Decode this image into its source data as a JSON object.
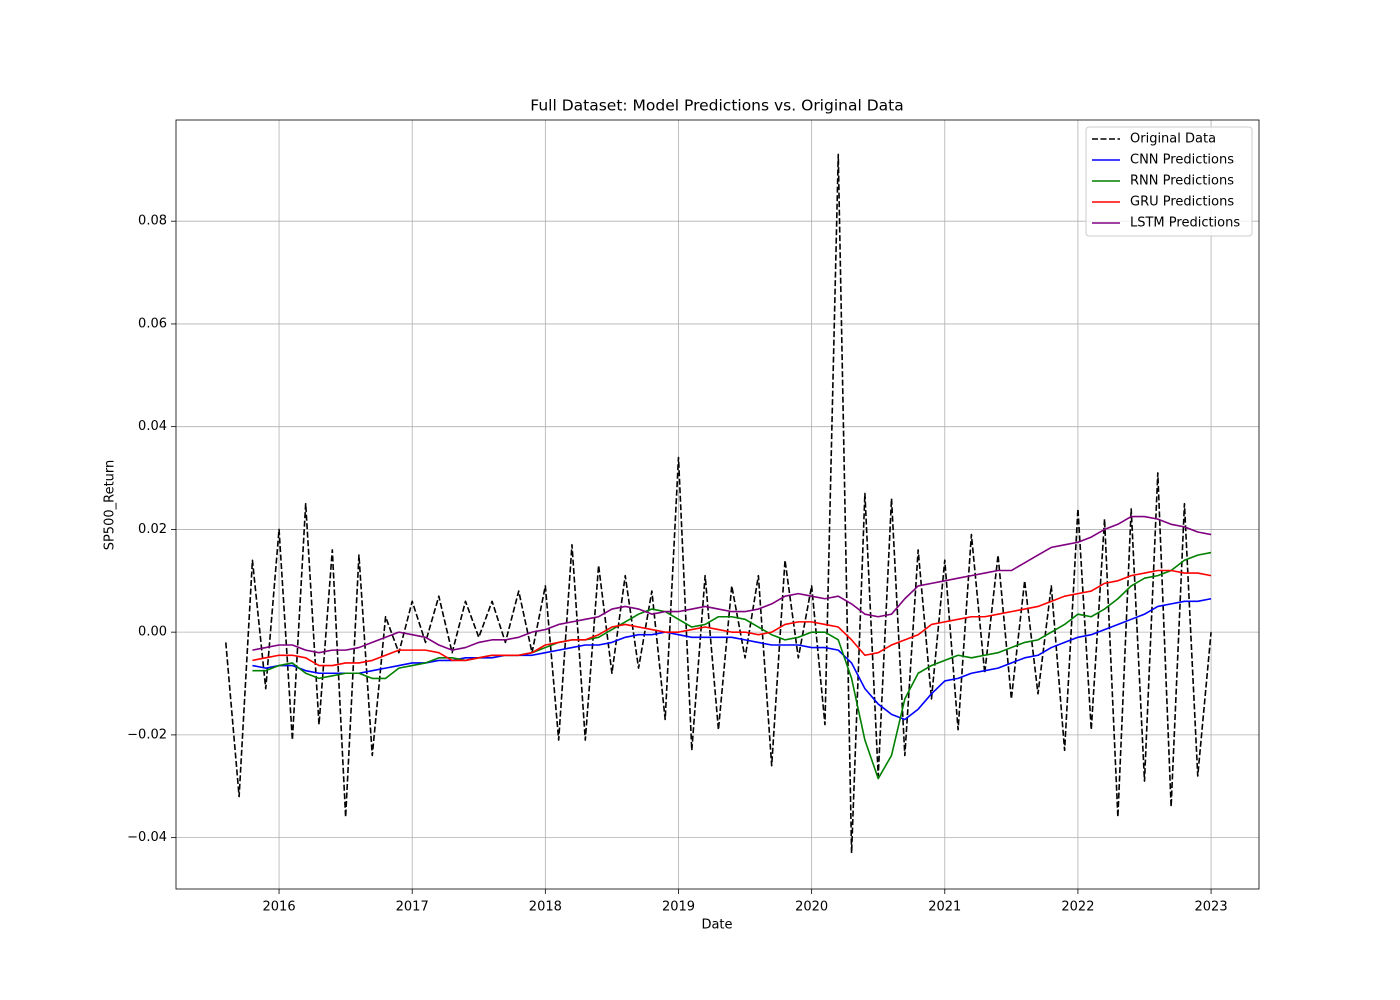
{
  "chart_data": {
    "type": "line",
    "title": "Full Dataset: Model Predictions vs. Original Data",
    "xlabel": "Date",
    "ylabel": "SP500_Return",
    "xlim": [
      2015.226,
      2023.36
    ],
    "xticks": [
      2016,
      2017,
      2018,
      2019,
      2020,
      2021,
      2022,
      2023
    ],
    "ylim": [
      -0.05,
      0.0997
    ],
    "yticks": [
      {
        "value": -0.04,
        "label": "−0.04"
      },
      {
        "value": -0.02,
        "label": "−0.02"
      },
      {
        "value": 0,
        "label": "0.00"
      },
      {
        "value": 0.02,
        "label": "0.02"
      },
      {
        "value": 0.04,
        "label": "0.04"
      },
      {
        "value": 0.06,
        "label": "0.06"
      },
      {
        "value": 0.08,
        "label": "0.08"
      }
    ],
    "grid": true,
    "legend": "upper right",
    "x": [
      2015.6,
      2015.7,
      2015.8,
      2015.9,
      2016.0,
      2016.1,
      2016.2,
      2016.3,
      2016.4,
      2016.5,
      2016.6,
      2016.7,
      2016.8,
      2016.9,
      2017.0,
      2017.1,
      2017.2,
      2017.3,
      2017.4,
      2017.5,
      2017.6,
      2017.7,
      2017.8,
      2017.9,
      2018.0,
      2018.1,
      2018.2,
      2018.3,
      2018.4,
      2018.5,
      2018.6,
      2018.7,
      2018.8,
      2018.9,
      2019.0,
      2019.1,
      2019.2,
      2019.3,
      2019.4,
      2019.5,
      2019.6,
      2019.7,
      2019.8,
      2019.9,
      2020.0,
      2020.1,
      2020.2,
      2020.3,
      2020.4,
      2020.5,
      2020.6,
      2020.7,
      2020.8,
      2020.9,
      2021.0,
      2021.1,
      2021.2,
      2021.3,
      2021.4,
      2021.5,
      2021.6,
      2021.7,
      2021.8,
      2021.9,
      2022.0,
      2022.1,
      2022.2,
      2022.3,
      2022.4,
      2022.5,
      2022.6,
      2022.7,
      2022.8,
      2022.9,
      2023.0
    ],
    "series": [
      {
        "name": "Original Data",
        "color": "#000000",
        "linestyle": "dashed",
        "values": [
          -0.002,
          -0.032,
          0.014,
          -0.011,
          0.02,
          -0.021,
          0.025,
          -0.018,
          0.016,
          -0.036,
          0.015,
          -0.024,
          0.003,
          -0.004,
          0.006,
          -0.002,
          0.007,
          -0.004,
          0.006,
          -0.001,
          0.006,
          -0.002,
          0.008,
          -0.004,
          0.009,
          -0.021,
          0.017,
          -0.021,
          0.013,
          -0.008,
          0.011,
          -0.007,
          0.008,
          -0.017,
          0.034,
          -0.023,
          0.011,
          -0.019,
          0.009,
          -0.005,
          0.011,
          -0.026,
          0.014,
          -0.005,
          0.009,
          -0.018,
          0.093,
          -0.043,
          0.027,
          -0.028,
          0.026,
          -0.024,
          0.016,
          -0.013,
          0.014,
          -0.019,
          0.019,
          -0.008,
          0.015,
          -0.013,
          0.01,
          -0.012,
          0.009,
          -0.023,
          0.024,
          -0.019,
          0.022,
          -0.036,
          0.024,
          -0.029,
          0.031,
          -0.034,
          0.025,
          -0.028,
          0.0
        ]
      },
      {
        "name": "CNN Predictions",
        "color": "#0000ff",
        "linestyle": "solid",
        "values": [
          null,
          null,
          -0.0065,
          -0.007,
          -0.0065,
          -0.0065,
          -0.0075,
          -0.008,
          -0.008,
          -0.008,
          -0.008,
          -0.0075,
          -0.007,
          -0.0065,
          -0.006,
          -0.006,
          -0.0055,
          -0.0055,
          -0.005,
          -0.005,
          -0.005,
          -0.0045,
          -0.0045,
          -0.0045,
          -0.004,
          -0.0035,
          -0.003,
          -0.0025,
          -0.0025,
          -0.002,
          -0.001,
          -0.0005,
          -0.0005,
          0.0,
          -0.0005,
          -0.001,
          -0.001,
          -0.001,
          -0.001,
          -0.0015,
          -0.002,
          -0.0025,
          -0.0025,
          -0.0025,
          -0.003,
          -0.003,
          -0.0035,
          -0.006,
          -0.011,
          -0.014,
          -0.016,
          -0.017,
          -0.015,
          -0.012,
          -0.0095,
          -0.009,
          -0.008,
          -0.0075,
          -0.007,
          -0.006,
          -0.005,
          -0.0045,
          -0.003,
          -0.002,
          -0.001,
          -0.0005,
          0.0005,
          0.0015,
          0.0025,
          0.0035,
          0.005,
          0.0055,
          0.006,
          0.006,
          0.0065
        ]
      },
      {
        "name": "RNN Predictions",
        "color": "#008000",
        "linestyle": "solid",
        "values": [
          null,
          null,
          -0.0075,
          -0.0075,
          -0.0065,
          -0.006,
          -0.008,
          -0.009,
          -0.0085,
          -0.008,
          -0.008,
          -0.009,
          -0.009,
          -0.007,
          -0.0065,
          -0.006,
          -0.005,
          -0.005,
          -0.0055,
          -0.005,
          -0.0045,
          -0.0045,
          -0.0045,
          -0.004,
          -0.003,
          -0.002,
          -0.0015,
          -0.0015,
          -0.001,
          0.0005,
          0.002,
          0.0035,
          0.0045,
          0.004,
          0.0025,
          0.001,
          0.0015,
          0.003,
          0.003,
          0.0025,
          0.001,
          -0.0005,
          -0.0015,
          -0.001,
          0.0,
          0.0,
          -0.0015,
          -0.009,
          -0.021,
          -0.0285,
          -0.024,
          -0.013,
          -0.008,
          -0.0065,
          -0.0055,
          -0.0045,
          -0.005,
          -0.0045,
          -0.004,
          -0.003,
          -0.002,
          -0.0015,
          0.0,
          0.0015,
          0.0035,
          0.003,
          0.0045,
          0.0065,
          0.009,
          0.0105,
          0.011,
          0.012,
          0.014,
          0.015,
          0.0155
        ]
      },
      {
        "name": "GRU Predictions",
        "color": "#ff0000",
        "linestyle": "solid",
        "values": [
          null,
          null,
          -0.0055,
          -0.005,
          -0.0045,
          -0.0045,
          -0.005,
          -0.0065,
          -0.0065,
          -0.006,
          -0.006,
          -0.0055,
          -0.0045,
          -0.0035,
          -0.0035,
          -0.0035,
          -0.004,
          -0.0055,
          -0.0055,
          -0.005,
          -0.0045,
          -0.0045,
          -0.0045,
          -0.004,
          -0.0025,
          -0.002,
          -0.0015,
          -0.0015,
          -0.0005,
          0.001,
          0.0015,
          0.001,
          0.0005,
          0.0,
          0.0,
          0.0005,
          0.001,
          0.0005,
          0.0,
          0.0,
          -0.0005,
          0.0,
          0.0015,
          0.002,
          0.002,
          0.0015,
          0.001,
          -0.0015,
          -0.0045,
          -0.004,
          -0.0025,
          -0.0015,
          -0.0005,
          0.0015,
          0.002,
          0.0025,
          0.003,
          0.003,
          0.0035,
          0.004,
          0.0045,
          0.005,
          0.006,
          0.007,
          0.0075,
          0.008,
          0.0095,
          0.01,
          0.011,
          0.0115,
          0.012,
          0.012,
          0.0115,
          0.0115,
          0.011
        ]
      },
      {
        "name": "LSTM Predictions",
        "color": "#800080",
        "linestyle": "solid",
        "values": [
          null,
          null,
          -0.0035,
          -0.003,
          -0.0025,
          -0.0025,
          -0.0035,
          -0.004,
          -0.0035,
          -0.0035,
          -0.003,
          -0.002,
          -0.001,
          0.0,
          -0.0005,
          -0.001,
          -0.0025,
          -0.0035,
          -0.003,
          -0.002,
          -0.0015,
          -0.0015,
          -0.001,
          0.0,
          0.0005,
          0.0015,
          0.002,
          0.0025,
          0.003,
          0.0045,
          0.005,
          0.0045,
          0.0035,
          0.004,
          0.004,
          0.0045,
          0.005,
          0.0045,
          0.004,
          0.004,
          0.0045,
          0.0055,
          0.007,
          0.0075,
          0.007,
          0.0065,
          0.007,
          0.0055,
          0.0035,
          0.003,
          0.0035,
          0.0065,
          0.009,
          0.0095,
          0.01,
          0.0105,
          0.011,
          0.0115,
          0.012,
          0.012,
          0.0135,
          0.015,
          0.0165,
          0.017,
          0.0175,
          0.0185,
          0.02,
          0.021,
          0.0225,
          0.0225,
          0.022,
          0.021,
          0.0205,
          0.0195,
          0.019
        ]
      }
    ]
  }
}
